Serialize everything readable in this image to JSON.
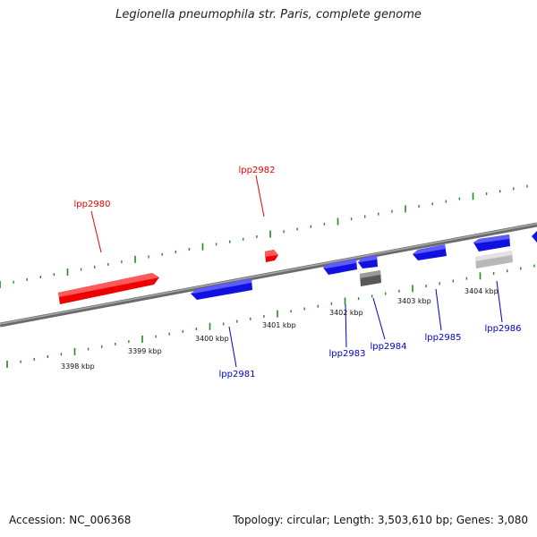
{
  "title": "Legionella pneumophila str. Paris, complete genome",
  "footer": {
    "accession": "Accession: NC_006368",
    "summary": "Topology: circular; Length: 3,503,610 bp; Genes: 3,080"
  },
  "colors": {
    "forward_gene": "#ff0000",
    "reverse_gene": "#0000ff",
    "gray_gene": "#808080",
    "pseudo_gene": "#c8c8c8",
    "tick": "#228b22",
    "backbone": "#808080"
  },
  "scale_labels": [
    "3398 kbp",
    "3399 kbp",
    "3400 kbp",
    "3401 kbp",
    "3402 kbp",
    "3403 kbp",
    "3404 kbp"
  ],
  "genes": [
    {
      "name": "lpp2980",
      "strand": "forward",
      "color": "red"
    },
    {
      "name": "lpp2981",
      "strand": "reverse",
      "color": "blue"
    },
    {
      "name": "lpp2982",
      "strand": "forward",
      "color": "red"
    },
    {
      "name": "lpp2983",
      "strand": "reverse",
      "color": "blue"
    },
    {
      "name": "lpp2984",
      "strand": "reverse",
      "color": "blue"
    },
    {
      "name": "lpp2985",
      "strand": "reverse",
      "color": "blue"
    },
    {
      "name": "lpp2986",
      "strand": "reverse",
      "color": "blue"
    }
  ]
}
